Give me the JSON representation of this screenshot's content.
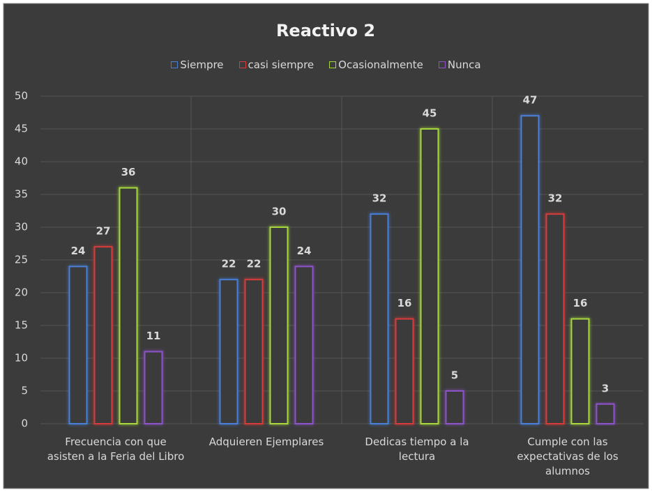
{
  "chart_data": {
    "type": "bar",
    "title": "Reactivo 2",
    "categories": [
      "Frecuencia con que asisten a la Feria del Libro",
      "Adquieren Ejemplares",
      "Dedicas tiempo a la lectura",
      "Cumple con las expectativas de los alumnos"
    ],
    "series": [
      {
        "name": "Siempre",
        "color": "#4a7fd6",
        "values": [
          24,
          22,
          32,
          47
        ]
      },
      {
        "name": "casi siempre",
        "color": "#d83b3b",
        "values": [
          27,
          22,
          16,
          32
        ]
      },
      {
        "name": "Ocasionalmente",
        "color": "#a6d83c",
        "values": [
          36,
          30,
          45,
          16
        ]
      },
      {
        "name": "Nunca",
        "color": "#8d52c8",
        "values": [
          11,
          24,
          5,
          3
        ]
      }
    ],
    "ylim": [
      0,
      50
    ],
    "yticks": [
      0,
      5,
      10,
      15,
      20,
      25,
      30,
      35,
      40,
      45,
      50
    ],
    "grid": true,
    "legend": "top"
  }
}
